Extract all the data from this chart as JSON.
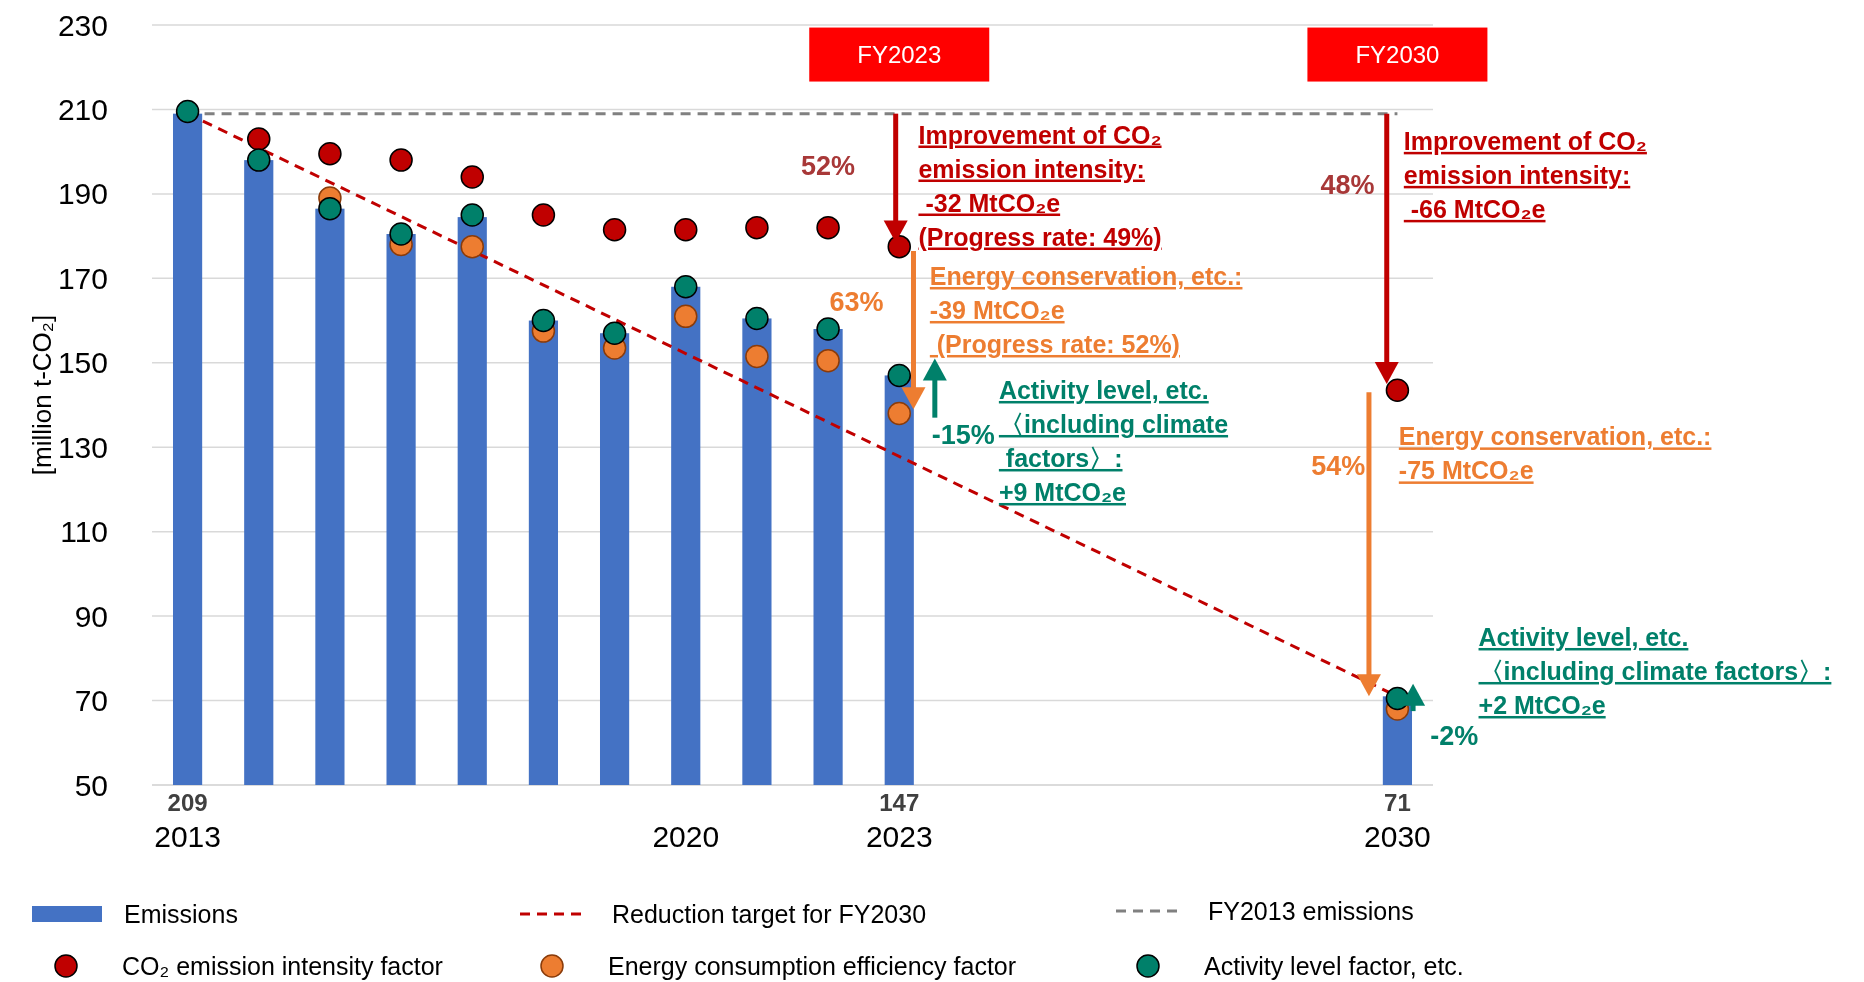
{
  "chart_data": {
    "type": "bar",
    "ylabel": "[million t-CO₂]",
    "xlim": [
      2012.5,
      2030.5
    ],
    "ylim": [
      50,
      230
    ],
    "xticks": [
      2013,
      2020,
      2023,
      2030
    ],
    "yticks": [
      50,
      70,
      90,
      110,
      130,
      150,
      170,
      190,
      210,
      230
    ],
    "grid": "y",
    "legend": "bottom",
    "marker": "circle",
    "series": [
      {
        "name": "Emissions",
        "color": "#4472c4",
        "x": [
          2013,
          2014,
          2015,
          2016,
          2017,
          2018,
          2019,
          2020,
          2021,
          2022,
          2023,
          2030
        ],
        "values": [
          209,
          198,
          186.5,
          180.5,
          184.5,
          160,
          157,
          168,
          160.5,
          158,
          147,
          71
        ],
        "value_labels": [
          "209",
          null,
          null,
          null,
          null,
          null,
          null,
          null,
          null,
          null,
          "147",
          "71"
        ]
      },
      {
        "type": "line",
        "name": "Reduction target for FY2030",
        "color": "#c00000",
        "line_style": "dashed",
        "marker": "none",
        "x": [
          2013,
          2030
        ],
        "values": [
          209,
          71
        ]
      },
      {
        "type": "line",
        "name": "FY2013 emissions",
        "color": "#808080",
        "line_style": "dashed",
        "marker": "none",
        "x": [
          2013,
          2030
        ],
        "values": [
          209,
          209
        ]
      },
      {
        "type": "scatter",
        "name": "CO₂ emission intensity factor",
        "color": "#c00000",
        "x": [
          2014,
          2015,
          2016,
          2017,
          2018,
          2019,
          2020,
          2021,
          2022,
          2023,
          2030
        ],
        "values": [
          203,
          199.5,
          198,
          194,
          185,
          181.5,
          181.5,
          182,
          182,
          177.5,
          143.5
        ]
      },
      {
        "type": "scatter",
        "name": "Energy consumption efficiency factor",
        "color": "#ed7d31",
        "x": [
          2015,
          2016,
          2017,
          2018,
          2019,
          2020,
          2021,
          2022,
          2023,
          2030
        ],
        "values": [
          189,
          178,
          177.5,
          157.5,
          153.5,
          161,
          151.5,
          150.5,
          138,
          68
        ]
      },
      {
        "type": "scatter",
        "name": "Activity level factor, etc.",
        "color": "#00806a",
        "x": [
          2013,
          2014,
          2015,
          2016,
          2017,
          2018,
          2019,
          2020,
          2021,
          2022,
          2023,
          2030
        ],
        "values": [
          209.5,
          198,
          186.5,
          180.5,
          185,
          160,
          157,
          168,
          160.5,
          158,
          147,
          70.5
        ]
      }
    ],
    "annotations": [
      "FY2023",
      "FY2030",
      "52%",
      {
        "text": "Improvement of CO₂\nemission intensity:\n -32 MtCO₂e\n(Progress rate: 49%)",
        "x": 2023,
        "y": 177.5
      },
      "63%",
      {
        "text": "Energy conservation, etc.:\n-39 MtCO₂e\n (Progress rate: 52%)",
        "x": 2023,
        "y": 138
      },
      "-15%",
      "Activity level, etc.\n〈including climate\n factors〉:\n+9 MtCO₂e",
      "48%",
      "Improvement of CO₂\nemission intensity:\n -66 MtCO₂e",
      "54%",
      "Energy conservation, etc.:\n-75 MtCO₂e",
      "Activity level, etc.\n〈including climate factors〉:\n+2 MtCO₂e",
      "-2%"
    ]
  }
}
